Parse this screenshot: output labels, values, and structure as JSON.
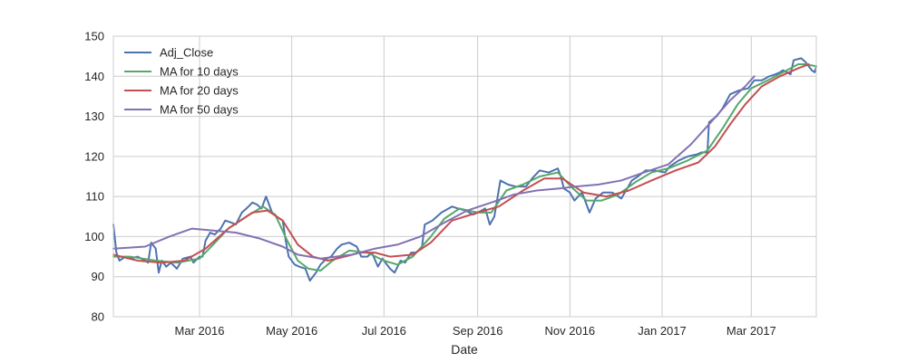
{
  "chart_data": {
    "type": "line",
    "title": "",
    "xlabel": "Date",
    "ylabel": "",
    "xlim": [
      "2016-01-04",
      "2017-04-13"
    ],
    "ylim": [
      80,
      150
    ],
    "yticks": [
      80,
      90,
      100,
      110,
      120,
      130,
      140,
      150
    ],
    "xticks": [
      {
        "date": "2016-03-01",
        "label": "Mar 2016"
      },
      {
        "date": "2016-05-01",
        "label": "May 2016"
      },
      {
        "date": "2016-07-01",
        "label": "Jul 2016"
      },
      {
        "date": "2016-09-01",
        "label": "Sep 2016"
      },
      {
        "date": "2016-11-01",
        "label": "Nov 2016"
      },
      {
        "date": "2017-01-01",
        "label": "Jan 2017"
      },
      {
        "date": "2017-03-01",
        "label": "Mar 2017"
      }
    ],
    "grid": true,
    "legend_position": "top-left",
    "series": [
      {
        "name": "Adj_Close",
        "color": "#4c72b0",
        "points": [
          [
            "2016-01-04",
            103
          ],
          [
            "2016-01-06",
            96
          ],
          [
            "2016-01-08",
            94
          ],
          [
            "2016-01-12",
            95
          ],
          [
            "2016-01-15",
            94.5
          ],
          [
            "2016-01-20",
            95
          ],
          [
            "2016-01-25",
            94
          ],
          [
            "2016-01-27",
            93.5
          ],
          [
            "2016-01-29",
            98.5
          ],
          [
            "2016-02-01",
            97
          ],
          [
            "2016-02-03",
            91
          ],
          [
            "2016-02-05",
            94
          ],
          [
            "2016-02-08",
            92.5
          ],
          [
            "2016-02-11",
            93.5
          ],
          [
            "2016-02-15",
            92
          ],
          [
            "2016-02-19",
            94.5
          ],
          [
            "2016-02-24",
            95
          ],
          [
            "2016-02-26",
            93.5
          ],
          [
            "2016-03-01",
            95
          ],
          [
            "2016-03-03",
            95
          ],
          [
            "2016-03-05",
            99
          ],
          [
            "2016-03-08",
            101
          ],
          [
            "2016-03-11",
            100.5
          ],
          [
            "2016-03-15",
            102
          ],
          [
            "2016-03-18",
            104
          ],
          [
            "2016-03-22",
            103.5
          ],
          [
            "2016-03-25",
            103
          ],
          [
            "2016-03-29",
            106
          ],
          [
            "2016-04-01",
            107
          ],
          [
            "2016-04-05",
            108.5
          ],
          [
            "2016-04-08",
            108
          ],
          [
            "2016-04-11",
            107
          ],
          [
            "2016-04-14",
            110
          ],
          [
            "2016-04-18",
            106
          ],
          [
            "2016-04-21",
            105
          ],
          [
            "2016-04-25",
            104
          ],
          [
            "2016-04-27",
            99
          ],
          [
            "2016-04-29",
            95
          ],
          [
            "2016-05-03",
            93
          ],
          [
            "2016-05-06",
            92.5
          ],
          [
            "2016-05-10",
            92
          ],
          [
            "2016-05-13",
            89
          ],
          [
            "2016-05-17",
            91
          ],
          [
            "2016-05-20",
            93
          ],
          [
            "2016-05-24",
            94.5
          ],
          [
            "2016-05-27",
            95
          ],
          [
            "2016-05-31",
            97
          ],
          [
            "2016-06-03",
            98
          ],
          [
            "2016-06-08",
            98.5
          ],
          [
            "2016-06-13",
            97.5
          ],
          [
            "2016-06-16",
            95
          ],
          [
            "2016-06-20",
            95
          ],
          [
            "2016-06-23",
            96
          ],
          [
            "2016-06-27",
            92.5
          ],
          [
            "2016-06-30",
            94.5
          ],
          [
            "2016-07-05",
            92
          ],
          [
            "2016-07-08",
            91
          ],
          [
            "2016-07-12",
            94
          ],
          [
            "2016-07-15",
            93.5
          ],
          [
            "2016-07-19",
            96
          ],
          [
            "2016-07-22",
            96
          ],
          [
            "2016-07-26",
            97
          ],
          [
            "2016-07-28",
            103
          ],
          [
            "2016-08-02",
            104
          ],
          [
            "2016-08-08",
            106
          ],
          [
            "2016-08-15",
            107.5
          ],
          [
            "2016-08-19",
            107
          ],
          [
            "2016-08-24",
            106.5
          ],
          [
            "2016-08-29",
            105.5
          ],
          [
            "2016-09-01",
            106
          ],
          [
            "2016-09-06",
            107
          ],
          [
            "2016-09-09",
            103
          ],
          [
            "2016-09-12",
            105
          ],
          [
            "2016-09-16",
            114
          ],
          [
            "2016-09-21",
            113
          ],
          [
            "2016-09-26",
            112.5
          ],
          [
            "2016-10-03",
            112.5
          ],
          [
            "2016-10-07",
            114.5
          ],
          [
            "2016-10-12",
            116.5
          ],
          [
            "2016-10-18",
            116
          ],
          [
            "2016-10-24",
            117
          ],
          [
            "2016-10-26",
            115
          ],
          [
            "2016-10-28",
            112
          ],
          [
            "2016-11-01",
            111
          ],
          [
            "2016-11-04",
            109
          ],
          [
            "2016-11-09",
            111
          ],
          [
            "2016-11-14",
            106
          ],
          [
            "2016-11-18",
            109.5
          ],
          [
            "2016-11-23",
            111
          ],
          [
            "2016-11-29",
            111
          ],
          [
            "2016-12-05",
            109.5
          ],
          [
            "2016-12-12",
            114
          ],
          [
            "2016-12-16",
            115
          ],
          [
            "2016-12-21",
            116.5
          ],
          [
            "2016-12-27",
            116.5
          ],
          [
            "2017-01-03",
            116
          ],
          [
            "2017-01-06",
            117.5
          ],
          [
            "2017-01-12",
            119
          ],
          [
            "2017-01-18",
            120
          ],
          [
            "2017-01-24",
            120.5
          ],
          [
            "2017-01-27",
            121
          ],
          [
            "2017-01-31",
            121
          ],
          [
            "2017-02-01",
            128.5
          ],
          [
            "2017-02-06",
            130
          ],
          [
            "2017-02-10",
            132
          ],
          [
            "2017-02-15",
            135.5
          ],
          [
            "2017-02-21",
            136.5
          ],
          [
            "2017-02-27",
            137
          ],
          [
            "2017-03-03",
            139
          ],
          [
            "2017-03-08",
            139
          ],
          [
            "2017-03-13",
            140
          ],
          [
            "2017-03-17",
            140.5
          ],
          [
            "2017-03-20",
            141
          ],
          [
            "2017-03-22",
            141.5
          ],
          [
            "2017-03-27",
            140.5
          ],
          [
            "2017-03-29",
            144
          ],
          [
            "2017-04-03",
            144.5
          ],
          [
            "2017-04-06",
            143.5
          ],
          [
            "2017-04-10",
            141.5
          ],
          [
            "2017-04-12",
            141
          ],
          [
            "2017-04-13",
            142.5
          ]
        ]
      },
      {
        "name": "MA for 10 days",
        "color": "#55a868",
        "points": [
          [
            "2016-01-04",
            95
          ],
          [
            "2016-01-15",
            95
          ],
          [
            "2016-02-01",
            94
          ],
          [
            "2016-02-15",
            93.5
          ],
          [
            "2016-03-01",
            94.5
          ],
          [
            "2016-03-10",
            98
          ],
          [
            "2016-03-20",
            102
          ],
          [
            "2016-04-01",
            105
          ],
          [
            "2016-04-12",
            107.5
          ],
          [
            "2016-04-20",
            105.5
          ],
          [
            "2016-04-28",
            99
          ],
          [
            "2016-05-05",
            94
          ],
          [
            "2016-05-12",
            92
          ],
          [
            "2016-05-20",
            91.5
          ],
          [
            "2016-05-28",
            94
          ],
          [
            "2016-06-08",
            96.5
          ],
          [
            "2016-06-20",
            96
          ],
          [
            "2016-07-01",
            94
          ],
          [
            "2016-07-10",
            93
          ],
          [
            "2016-07-20",
            95
          ],
          [
            "2016-08-01",
            100
          ],
          [
            "2016-08-10",
            104.5
          ],
          [
            "2016-08-20",
            107
          ],
          [
            "2016-09-01",
            106
          ],
          [
            "2016-09-10",
            106
          ],
          [
            "2016-09-20",
            111.5
          ],
          [
            "2016-10-01",
            113
          ],
          [
            "2016-10-12",
            115
          ],
          [
            "2016-10-24",
            116
          ],
          [
            "2016-11-03",
            112
          ],
          [
            "2016-11-12",
            109
          ],
          [
            "2016-11-22",
            109
          ],
          [
            "2016-12-03",
            110.5
          ],
          [
            "2016-12-14",
            113.5
          ],
          [
            "2016-12-25",
            116
          ],
          [
            "2017-01-05",
            117
          ],
          [
            "2017-01-18",
            119
          ],
          [
            "2017-01-31",
            121.5
          ],
          [
            "2017-02-10",
            127
          ],
          [
            "2017-02-20",
            133
          ],
          [
            "2017-03-01",
            137
          ],
          [
            "2017-03-12",
            139
          ],
          [
            "2017-03-22",
            141
          ],
          [
            "2017-04-01",
            143
          ],
          [
            "2017-04-06",
            143
          ],
          [
            "2017-04-13",
            142.5
          ]
        ]
      },
      {
        "name": "MA for 20 days",
        "color": "#c44e52",
        "points": [
          [
            "2016-01-04",
            95.5
          ],
          [
            "2016-01-20",
            94
          ],
          [
            "2016-02-05",
            93.5
          ],
          [
            "2016-02-20",
            94
          ],
          [
            "2016-03-05",
            97
          ],
          [
            "2016-03-20",
            102
          ],
          [
            "2016-04-05",
            106
          ],
          [
            "2016-04-15",
            106.5
          ],
          [
            "2016-04-25",
            104
          ],
          [
            "2016-05-05",
            98
          ],
          [
            "2016-05-15",
            95
          ],
          [
            "2016-05-25",
            94
          ],
          [
            "2016-06-05",
            95
          ],
          [
            "2016-06-15",
            96
          ],
          [
            "2016-06-25",
            96
          ],
          [
            "2016-07-05",
            95
          ],
          [
            "2016-07-20",
            95.5
          ],
          [
            "2016-08-01",
            98.5
          ],
          [
            "2016-08-15",
            104
          ],
          [
            "2016-09-01",
            106
          ],
          [
            "2016-09-15",
            107.5
          ],
          [
            "2016-10-01",
            111.5
          ],
          [
            "2016-10-15",
            114.5
          ],
          [
            "2016-10-27",
            114.5
          ],
          [
            "2016-11-10",
            111
          ],
          [
            "2016-11-25",
            110
          ],
          [
            "2016-12-10",
            111.5
          ],
          [
            "2016-12-25",
            114
          ],
          [
            "2017-01-10",
            116.5
          ],
          [
            "2017-01-25",
            118.5
          ],
          [
            "2017-02-05",
            122.5
          ],
          [
            "2017-02-15",
            128
          ],
          [
            "2017-02-25",
            133
          ],
          [
            "2017-03-08",
            137.5
          ],
          [
            "2017-03-20",
            140
          ],
          [
            "2017-04-01",
            142
          ],
          [
            "2017-04-08",
            143
          ]
        ]
      },
      {
        "name": "MA for 50 days",
        "color": "#8172b2",
        "points": [
          [
            "2016-01-04",
            97
          ],
          [
            "2016-01-25",
            97.5
          ],
          [
            "2016-02-10",
            100
          ],
          [
            "2016-02-25",
            102
          ],
          [
            "2016-03-10",
            101.5
          ],
          [
            "2016-03-25",
            101
          ],
          [
            "2016-04-10",
            99.5
          ],
          [
            "2016-04-25",
            97.5
          ],
          [
            "2016-05-05",
            95.5
          ],
          [
            "2016-05-20",
            94.5
          ],
          [
            "2016-06-10",
            95.5
          ],
          [
            "2016-06-25",
            97
          ],
          [
            "2016-07-10",
            98
          ],
          [
            "2016-07-25",
            100
          ],
          [
            "2016-08-10",
            103.5
          ],
          [
            "2016-08-25",
            106.5
          ],
          [
            "2016-09-10",
            108.5
          ],
          [
            "2016-09-25",
            110.5
          ],
          [
            "2016-10-10",
            111.5
          ],
          [
            "2016-10-25",
            112
          ],
          [
            "2016-11-05",
            112.5
          ],
          [
            "2016-11-20",
            113
          ],
          [
            "2016-12-05",
            114
          ],
          [
            "2016-12-20",
            116
          ],
          [
            "2017-01-05",
            118
          ],
          [
            "2017-01-20",
            123
          ],
          [
            "2017-02-01",
            128
          ],
          [
            "2017-02-15",
            134
          ],
          [
            "2017-02-25",
            137.5
          ],
          [
            "2017-03-03",
            140
          ]
        ]
      }
    ]
  }
}
